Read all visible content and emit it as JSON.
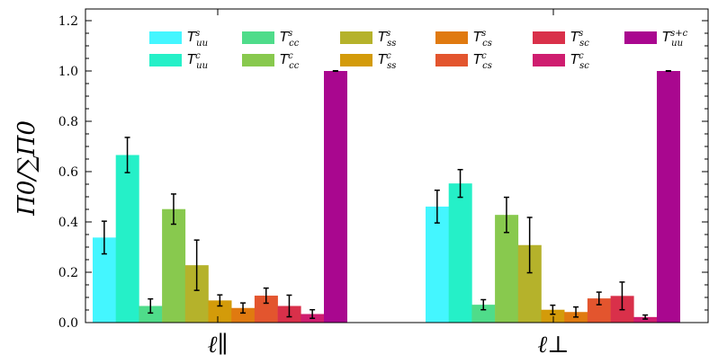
{
  "chart_data": {
    "type": "bar",
    "ylabel": "Π0/∑Π0",
    "ylim": [
      0,
      1.25
    ],
    "yticks": [
      0.0,
      0.2,
      0.4,
      0.6,
      0.8,
      1.0,
      1.2
    ],
    "ytick_labels": [
      "0.0",
      "0.2",
      "0.4",
      "0.6",
      "0.8",
      "1.0",
      "1.2"
    ],
    "categories": [
      "ℓ∥",
      "ℓ⊥"
    ],
    "legend_position": "top",
    "series": [
      {
        "name": "T^s_uu",
        "color": "#44f6ff",
        "values": [
          0.338,
          0.461
        ],
        "errors": [
          0.065,
          0.065
        ]
      },
      {
        "name": "T^c_uu",
        "color": "#25f0c8",
        "values": [
          0.666,
          0.553
        ],
        "errors": [
          0.07,
          0.055
        ]
      },
      {
        "name": "T^s_cc",
        "color": "#4fdc8a",
        "values": [
          0.066,
          0.071
        ],
        "errors": [
          0.028,
          0.02
        ]
      },
      {
        "name": "T^c_cc",
        "color": "#88c94e",
        "values": [
          0.451,
          0.428
        ],
        "errors": [
          0.06,
          0.07
        ]
      },
      {
        "name": "T^s_ss",
        "color": "#b5b22b",
        "values": [
          0.228,
          0.308
        ],
        "errors": [
          0.1,
          0.11
        ]
      },
      {
        "name": "T^c_ss",
        "color": "#d39b0a",
        "values": [
          0.088,
          0.051
        ],
        "errors": [
          0.022,
          0.018
        ]
      },
      {
        "name": "T^s_cs",
        "color": "#e07a10",
        "values": [
          0.058,
          0.042
        ],
        "errors": [
          0.02,
          0.02
        ]
      },
      {
        "name": "T^c_cs",
        "color": "#e3552e",
        "values": [
          0.107,
          0.096
        ],
        "errors": [
          0.03,
          0.025
        ]
      },
      {
        "name": "T^s_sc",
        "color": "#d9304a",
        "values": [
          0.066,
          0.106
        ],
        "errors": [
          0.043,
          0.055
        ]
      },
      {
        "name": "T^c_sc",
        "color": "#cf1d6f",
        "values": [
          0.034,
          0.022
        ],
        "errors": [
          0.017,
          0.008
        ]
      },
      {
        "name": "T^s+c_uu",
        "color": "#a9078f",
        "values": [
          1.0,
          1.0
        ],
        "errors": [
          0.001,
          0.001
        ]
      }
    ],
    "legend": [
      {
        "base": "T",
        "sup": "s",
        "sub": "uu"
      },
      {
        "base": "T",
        "sup": "c",
        "sub": "uu"
      },
      {
        "base": "T",
        "sup": "s",
        "sub": "cc"
      },
      {
        "base": "T",
        "sup": "c",
        "sub": "cc"
      },
      {
        "base": "T",
        "sup": "s",
        "sub": "ss"
      },
      {
        "base": "T",
        "sup": "c",
        "sub": "ss"
      },
      {
        "base": "T",
        "sup": "s",
        "sub": "cs"
      },
      {
        "base": "T",
        "sup": "c",
        "sub": "cs"
      },
      {
        "base": "T",
        "sup": "s",
        "sub": "sc"
      },
      {
        "base": "T",
        "sup": "c",
        "sub": "sc"
      },
      {
        "base": "T",
        "sup": "s+c",
        "sub": "uu"
      }
    ]
  }
}
